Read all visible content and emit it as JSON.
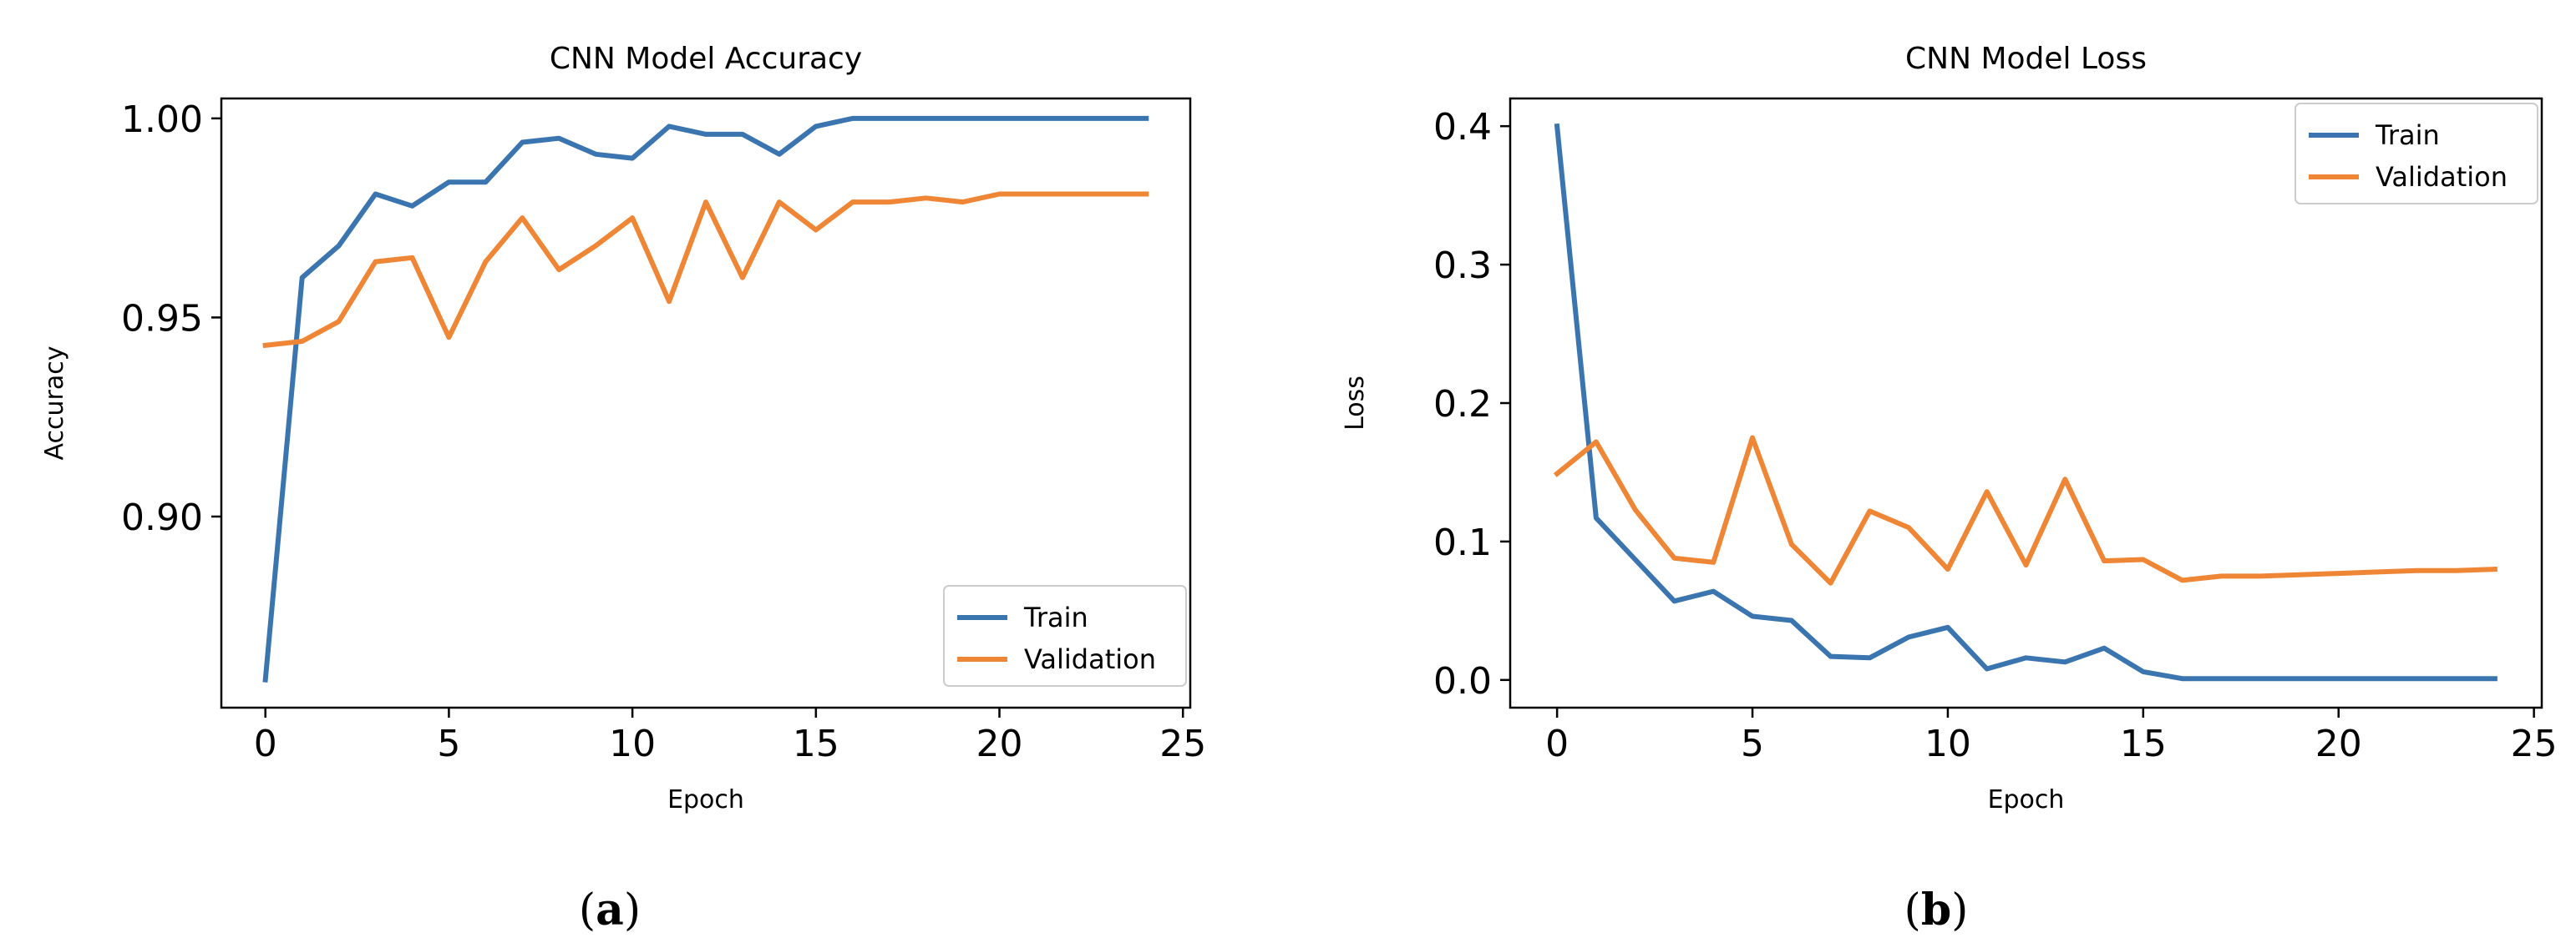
{
  "colors": {
    "train": "#3a75af",
    "validation": "#ef8636"
  },
  "chart_data": [
    {
      "type": "line",
      "panel_label": "a",
      "title": "CNN Model Accuracy",
      "xlabel": "Epoch",
      "ylabel": "Accuracy",
      "xlim": [
        -1.2,
        25.2
      ],
      "ylim": [
        0.852,
        1.005
      ],
      "xticks": [
        0,
        5,
        10,
        15,
        20,
        25
      ],
      "xtick_labels": [
        "0",
        "5",
        "10",
        "15",
        "20",
        "25"
      ],
      "yticks": [
        0.9,
        0.95,
        1.0
      ],
      "ytick_labels": [
        "0.90",
        "0.95",
        "1.00"
      ],
      "legend_position": "lower-right",
      "x": [
        0,
        1,
        2,
        3,
        4,
        5,
        6,
        7,
        8,
        9,
        10,
        11,
        12,
        13,
        14,
        15,
        16,
        17,
        18,
        19,
        20,
        21,
        22,
        23,
        24
      ],
      "series": [
        {
          "name": "Train",
          "color_key": "train",
          "values": [
            0.859,
            0.96,
            0.968,
            0.981,
            0.978,
            0.984,
            0.984,
            0.994,
            0.995,
            0.991,
            0.99,
            0.998,
            0.996,
            0.996,
            0.991,
            0.998,
            1.0,
            1.0,
            1.0,
            1.0,
            1.0,
            1.0,
            1.0,
            1.0,
            1.0
          ]
        },
        {
          "name": "Validation",
          "color_key": "validation",
          "values": [
            0.943,
            0.944,
            0.949,
            0.964,
            0.965,
            0.945,
            0.964,
            0.975,
            0.962,
            0.968,
            0.975,
            0.954,
            0.979,
            0.96,
            0.979,
            0.972,
            0.979,
            0.979,
            0.98,
            0.979,
            0.981,
            0.981,
            0.981,
            0.981,
            0.981
          ]
        }
      ]
    },
    {
      "type": "line",
      "panel_label": "b",
      "title": "CNN Model Loss",
      "xlabel": "Epoch",
      "ylabel": "Loss",
      "xlim": [
        -1.2,
        25.2
      ],
      "ylim": [
        -0.02,
        0.42
      ],
      "xticks": [
        0,
        5,
        10,
        15,
        20,
        25
      ],
      "xtick_labels": [
        "0",
        "5",
        "10",
        "15",
        "20",
        "25"
      ],
      "yticks": [
        0.0,
        0.1,
        0.2,
        0.3,
        0.4
      ],
      "ytick_labels": [
        "0.0",
        "0.1",
        "0.2",
        "0.3",
        "0.4"
      ],
      "legend_position": "top-right",
      "x": [
        0,
        1,
        2,
        3,
        4,
        5,
        6,
        7,
        8,
        9,
        10,
        11,
        12,
        13,
        14,
        15,
        16,
        17,
        18,
        19,
        20,
        21,
        22,
        23,
        24
      ],
      "series": [
        {
          "name": "Train",
          "color_key": "train",
          "values": [
            0.4,
            0.117,
            0.087,
            0.057,
            0.064,
            0.046,
            0.043,
            0.017,
            0.016,
            0.031,
            0.038,
            0.008,
            0.016,
            0.013,
            0.023,
            0.006,
            0.001,
            0.001,
            0.001,
            0.001,
            0.001,
            0.001,
            0.001,
            0.001,
            0.001
          ]
        },
        {
          "name": "Validation",
          "color_key": "validation",
          "values": [
            0.149,
            0.172,
            0.123,
            0.088,
            0.085,
            0.175,
            0.098,
            0.07,
            0.122,
            0.11,
            0.08,
            0.136,
            0.083,
            0.145,
            0.086,
            0.087,
            0.072,
            0.075,
            0.075,
            0.076,
            0.077,
            0.078,
            0.079,
            0.079,
            0.08
          ]
        }
      ]
    }
  ]
}
